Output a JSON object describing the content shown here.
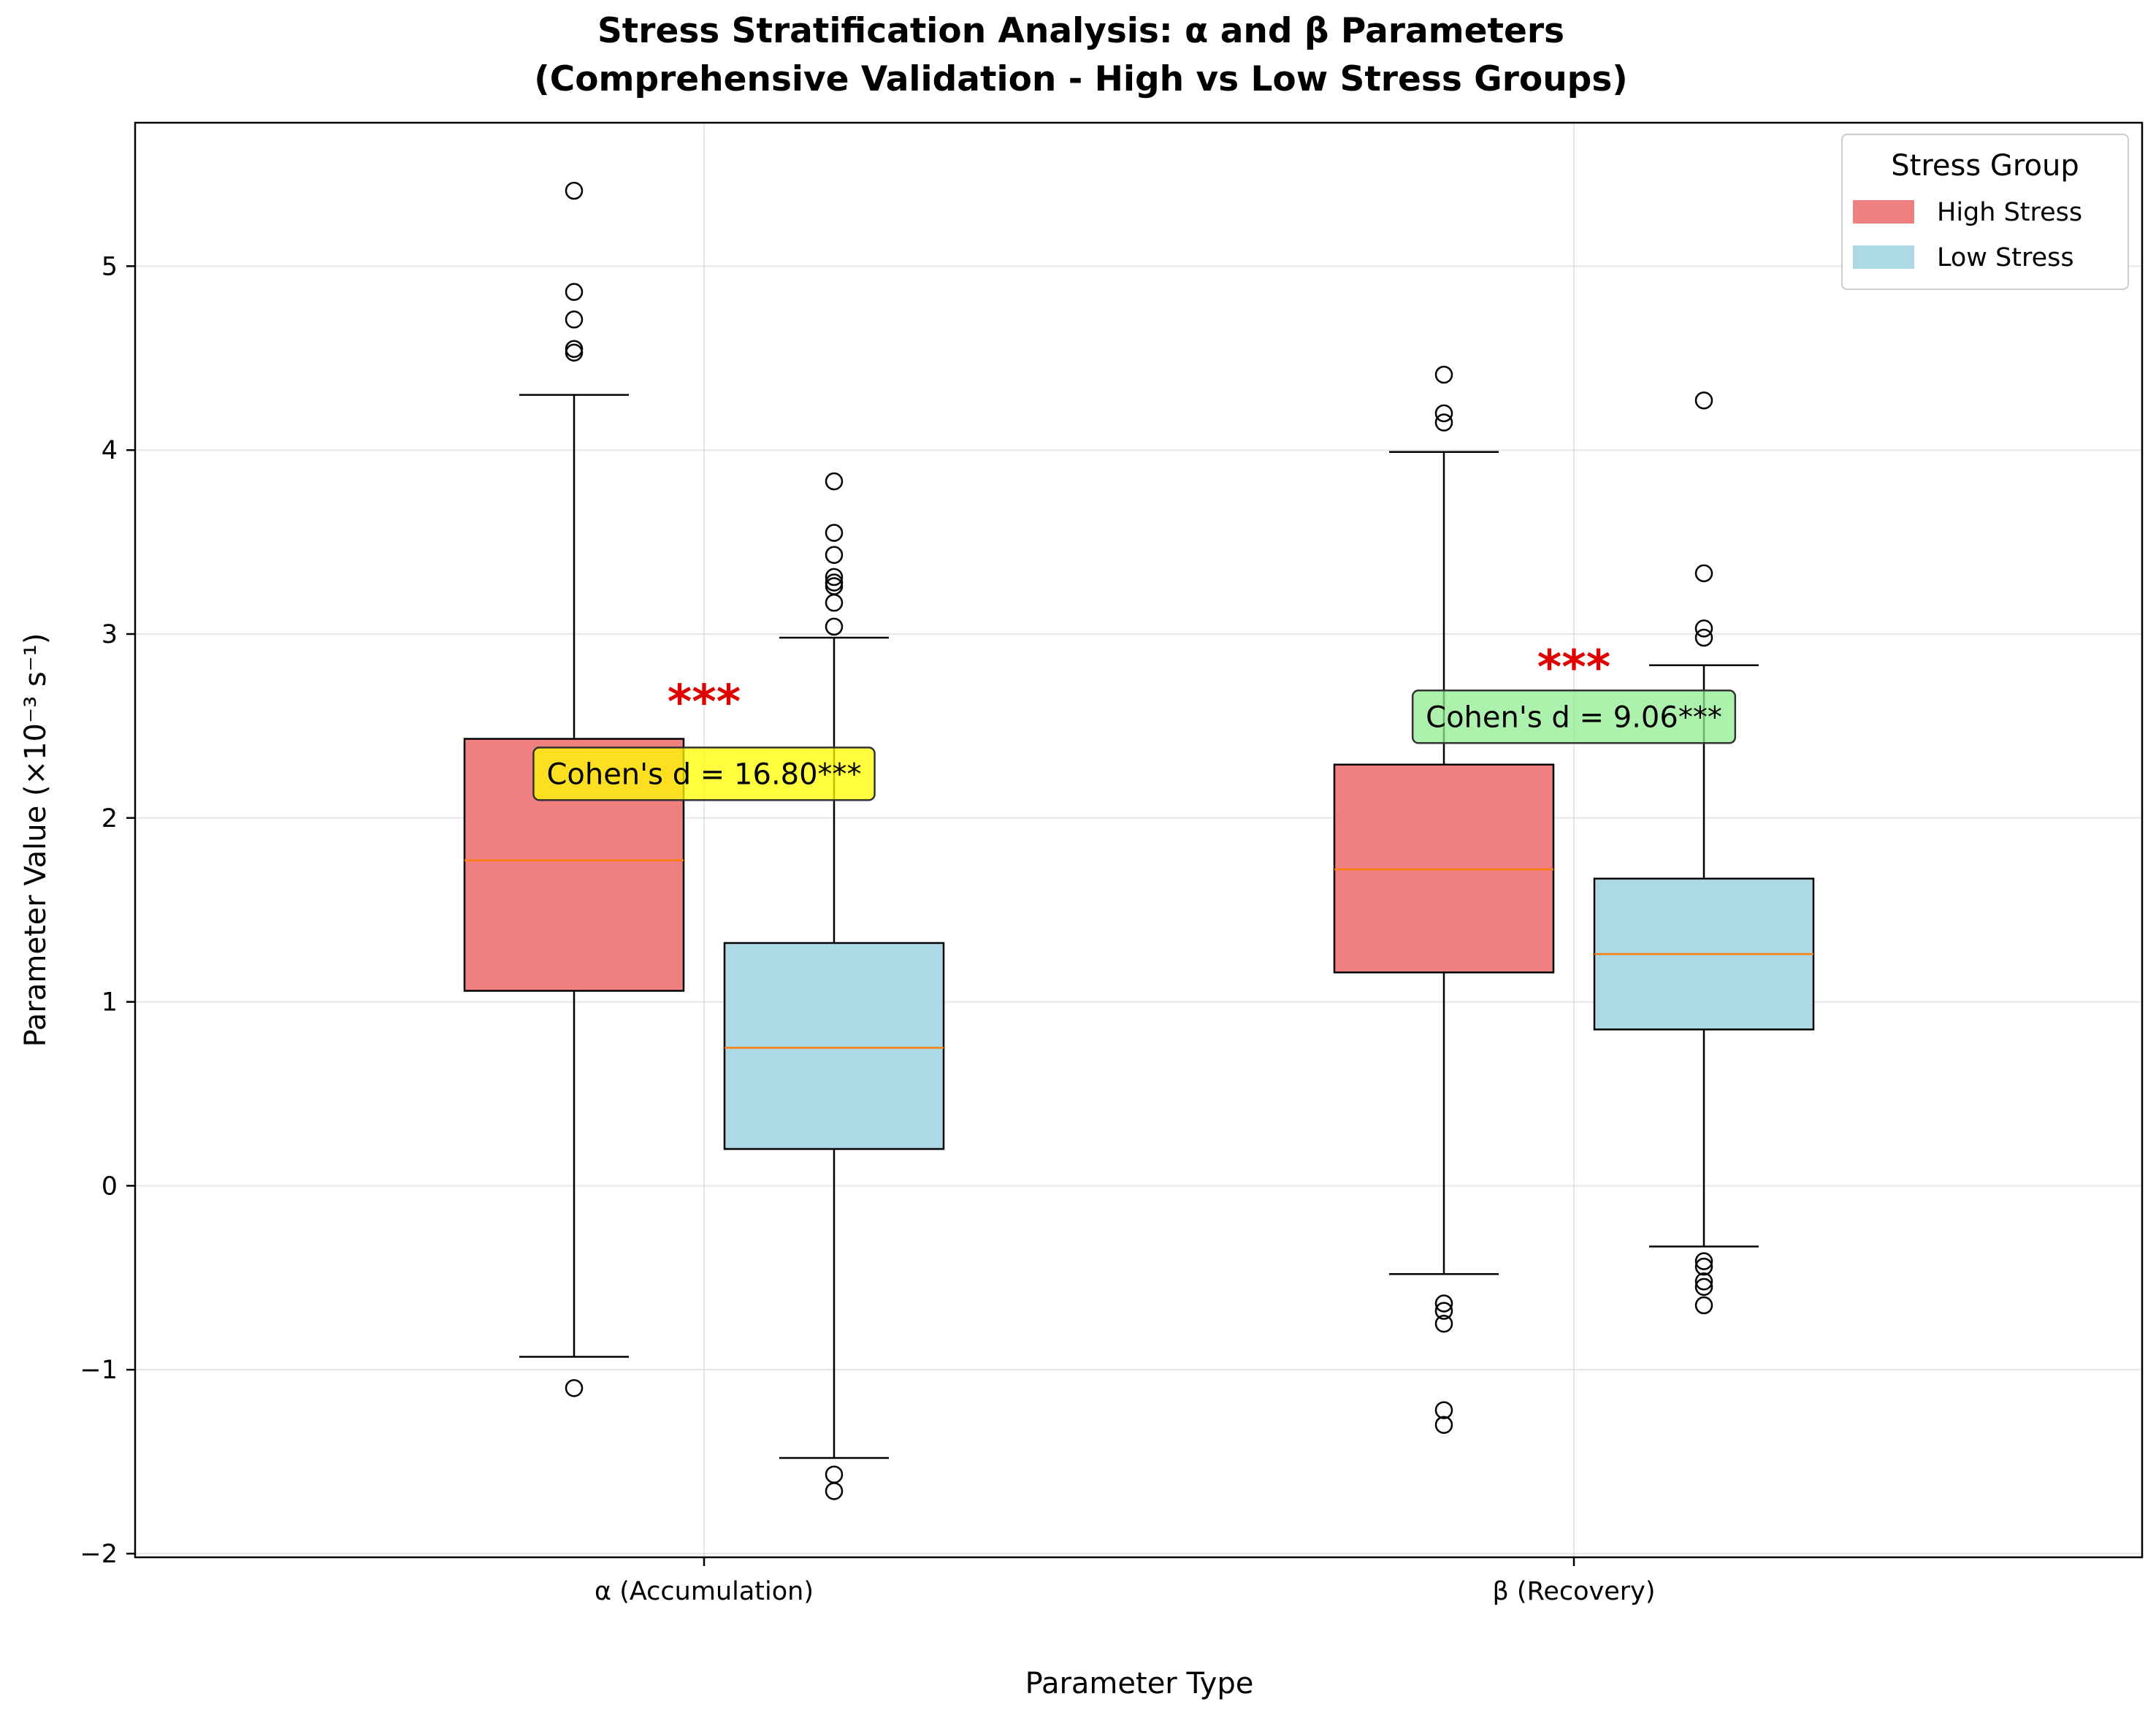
{
  "chart_data": {
    "type": "boxplot",
    "title_line1": "Stress Stratification Analysis: α and β Parameters",
    "title_line2": "(Comprehensive Validation - High vs Low Stress Groups)",
    "xlabel": "Parameter Type",
    "ylabel": "Parameter Value (×10⁻³ s⁻¹)",
    "ylim": [
      -2.02,
      5.78
    ],
    "yticks": [
      -2,
      -1,
      0,
      1,
      2,
      3,
      4,
      5
    ],
    "ytick_labels": [
      "−2",
      "−1",
      "0",
      "1",
      "2",
      "3",
      "4",
      "5"
    ],
    "categories": [
      "α (Accumulation)",
      "β (Recovery)"
    ],
    "grid": true,
    "legend": {
      "title": "Stress Group",
      "placement": "top-right",
      "entries": [
        {
          "label": "High Stress",
          "color": "#f08080"
        },
        {
          "label": "Low Stress",
          "color": "#add8e6"
        }
      ]
    },
    "colors": {
      "high": "#f08080",
      "low": "#add8e6",
      "median": "#ff7f0e",
      "significance": "#e00000"
    },
    "series": [
      {
        "name": "High Stress",
        "boxes": [
          {
            "category": "α (Accumulation)",
            "whisker_low": -0.93,
            "q1": 1.06,
            "median": 1.77,
            "q3": 2.43,
            "whisker_high": 4.3,
            "outliers": [
              5.41,
              4.86,
              4.71,
              4.55,
              4.53,
              -1.1
            ]
          },
          {
            "category": "β (Recovery)",
            "whisker_low": -0.48,
            "q1": 1.16,
            "median": 1.72,
            "q3": 2.29,
            "whisker_high": 3.99,
            "outliers": [
              4.41,
              4.2,
              4.15,
              -0.64,
              -0.68,
              -0.75,
              -1.22,
              -1.3
            ]
          }
        ]
      },
      {
        "name": "Low Stress",
        "boxes": [
          {
            "category": "α (Accumulation)",
            "whisker_low": -1.48,
            "q1": 0.2,
            "median": 0.75,
            "q3": 1.32,
            "whisker_high": 2.98,
            "outliers": [
              3.83,
              3.55,
              3.43,
              3.31,
              3.28,
              3.26,
              3.17,
              3.04,
              -1.57,
              -1.66
            ]
          },
          {
            "category": "β (Recovery)",
            "whisker_low": -0.33,
            "q1": 0.85,
            "median": 1.26,
            "q3": 1.67,
            "whisker_high": 2.83,
            "outliers": [
              4.27,
              3.33,
              3.03,
              2.98,
              -0.41,
              -0.44,
              -0.52,
              -0.55,
              -0.65
            ]
          }
        ]
      }
    ],
    "annotations": [
      {
        "category": "α (Accumulation)",
        "significance": "***",
        "sig_y": 2.63,
        "effect_text": "Cohen's d = 16.80***",
        "effect_y": 2.24,
        "box_color": "#ffff00"
      },
      {
        "category": "β (Recovery)",
        "significance": "***",
        "sig_y": 2.82,
        "effect_text": "Cohen's d = 9.06***",
        "effect_y": 2.55,
        "box_color": "#90ee90"
      }
    ]
  }
}
